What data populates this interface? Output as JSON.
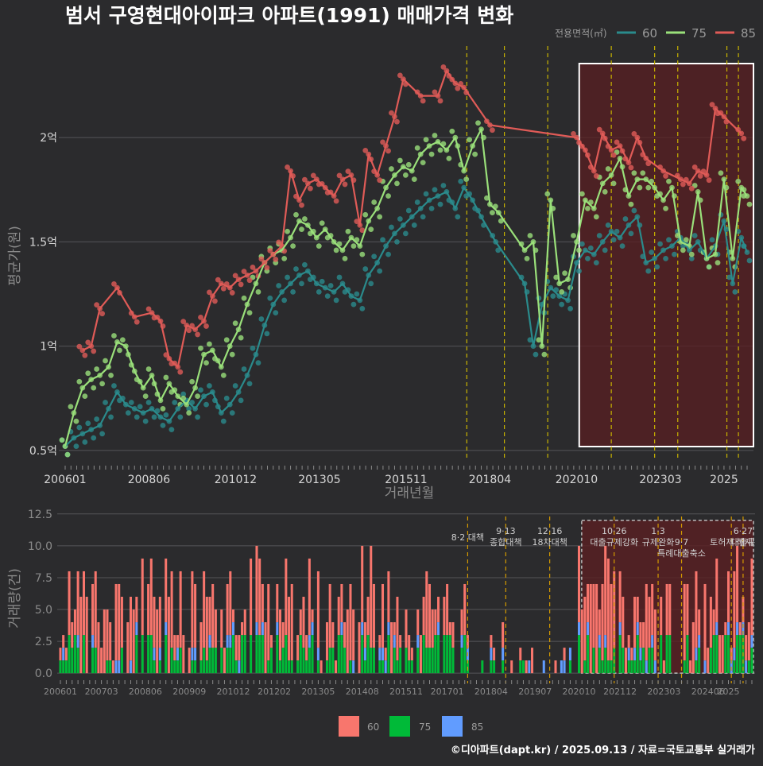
{
  "chart_data": [
    {
      "type": "line",
      "title": "범서 구영현대아이파크 아파트(1991) 매매가격 변화",
      "xlabel": "거래년월",
      "ylabel": "평균가(원)",
      "x_range": [
        "2006-01",
        "2025-09"
      ],
      "ylim": [
        0.45,
        2.45
      ],
      "y_unit": "억",
      "yticks": [
        {
          "value": 0.5,
          "label": "0.5억"
        },
        {
          "value": 1.0,
          "label": "1억"
        },
        {
          "value": 1.5,
          "label": "1.5억"
        },
        {
          "value": 2.0,
          "label": "2억"
        }
      ],
      "xticks": [
        "200601",
        "200806",
        "201012",
        "201305",
        "201511",
        "201804",
        "202010",
        "202303",
        "2025"
      ],
      "legend": {
        "title": "전용면적(㎡)",
        "position": "top-right"
      },
      "grid": true,
      "highlight_range": [
        "2020-12",
        "2025-09"
      ],
      "policy_dates": [
        "2017-08",
        "2018-09",
        "2019-12",
        "2021-10",
        "2023-01",
        "2023-09",
        "2025-02",
        "2025-06"
      ],
      "series": [
        {
          "name": "60",
          "color": "#2a8b8c",
          "points": [
            [
              "2006-01",
              0.52
            ],
            [
              "2006-04",
              0.56
            ],
            [
              "2006-07",
              0.58
            ],
            [
              "2006-10",
              0.6
            ],
            [
              "2007-01",
              0.62
            ],
            [
              "2007-04",
              0.7
            ],
            [
              "2007-07",
              0.78
            ],
            [
              "2007-10",
              0.72
            ],
            [
              "2008-01",
              0.7
            ],
            [
              "2008-04",
              0.68
            ],
            [
              "2008-07",
              0.7
            ],
            [
              "2008-10",
              0.66
            ],
            [
              "2009-01",
              0.64
            ],
            [
              "2009-04",
              0.7
            ],
            [
              "2009-07",
              0.74
            ],
            [
              "2009-10",
              0.7
            ],
            [
              "2010-01",
              0.76
            ],
            [
              "2010-04",
              0.78
            ],
            [
              "2010-07",
              0.68
            ],
            [
              "2010-10",
              0.72
            ],
            [
              "2011-01",
              0.78
            ],
            [
              "2011-04",
              0.86
            ],
            [
              "2011-07",
              0.96
            ],
            [
              "2011-10",
              1.1
            ],
            [
              "2012-01",
              1.2
            ],
            [
              "2012-04",
              1.26
            ],
            [
              "2012-07",
              1.3
            ],
            [
              "2012-10",
              1.34
            ],
            [
              "2013-01",
              1.36
            ],
            [
              "2013-04",
              1.3
            ],
            [
              "2013-07",
              1.28
            ],
            [
              "2013-10",
              1.26
            ],
            [
              "2014-01",
              1.3
            ],
            [
              "2014-04",
              1.24
            ],
            [
              "2014-07",
              1.22
            ],
            [
              "2014-10",
              1.34
            ],
            [
              "2015-01",
              1.4
            ],
            [
              "2015-04",
              1.48
            ],
            [
              "2015-07",
              1.54
            ],
            [
              "2015-10",
              1.58
            ],
            [
              "2016-01",
              1.62
            ],
            [
              "2016-04",
              1.66
            ],
            [
              "2016-07",
              1.7
            ],
            [
              "2016-10",
              1.72
            ],
            [
              "2017-01",
              1.74
            ],
            [
              "2017-04",
              1.66
            ],
            [
              "2017-07",
              1.76
            ],
            [
              "2017-10",
              1.7
            ],
            [
              "2018-01",
              1.62
            ],
            [
              "2018-06",
              1.5
            ],
            [
              "2019-04",
              1.3
            ],
            [
              "2019-07",
              1.0
            ],
            [
              "2019-10",
              1.2
            ],
            [
              "2020-01",
              1.28
            ],
            [
              "2020-04",
              1.24
            ],
            [
              "2020-07",
              1.22
            ],
            [
              "2020-10",
              1.4
            ],
            [
              "2021-01",
              1.46
            ],
            [
              "2021-04",
              1.44
            ],
            [
              "2021-07",
              1.5
            ],
            [
              "2021-10",
              1.55
            ],
            [
              "2022-01",
              1.52
            ],
            [
              "2022-04",
              1.58
            ],
            [
              "2022-07",
              1.62
            ],
            [
              "2022-10",
              1.4
            ],
            [
              "2023-01",
              1.42
            ],
            [
              "2023-04",
              1.46
            ],
            [
              "2023-07",
              1.48
            ],
            [
              "2023-10",
              1.52
            ],
            [
              "2024-01",
              1.46
            ],
            [
              "2024-04",
              1.5
            ],
            [
              "2024-07",
              1.42
            ],
            [
              "2024-10",
              1.48
            ],
            [
              "2025-01",
              1.6
            ],
            [
              "2025-04",
              1.3
            ],
            [
              "2025-07",
              1.52
            ],
            [
              "2025-09",
              1.45
            ]
          ]
        },
        {
          "name": "75",
          "color": "#9ae07a",
          "points": [
            [
              "2006-01",
              0.52
            ],
            [
              "2006-04",
              0.68
            ],
            [
              "2006-07",
              0.8
            ],
            [
              "2006-10",
              0.84
            ],
            [
              "2007-01",
              0.86
            ],
            [
              "2007-04",
              0.9
            ],
            [
              "2007-07",
              1.02
            ],
            [
              "2007-10",
              1.0
            ],
            [
              "2008-01",
              0.88
            ],
            [
              "2008-04",
              0.8
            ],
            [
              "2008-07",
              0.86
            ],
            [
              "2008-10",
              0.74
            ],
            [
              "2009-01",
              0.82
            ],
            [
              "2009-04",
              0.76
            ],
            [
              "2009-07",
              0.72
            ],
            [
              "2009-10",
              0.8
            ],
            [
              "2010-01",
              0.96
            ],
            [
              "2010-04",
              0.98
            ],
            [
              "2010-07",
              0.9
            ],
            [
              "2010-10",
              1.0
            ],
            [
              "2011-01",
              1.08
            ],
            [
              "2011-04",
              1.2
            ],
            [
              "2011-07",
              1.3
            ],
            [
              "2011-10",
              1.4
            ],
            [
              "2012-01",
              1.44
            ],
            [
              "2012-04",
              1.46
            ],
            [
              "2012-07",
              1.52
            ],
            [
              "2012-10",
              1.6
            ],
            [
              "2013-01",
              1.58
            ],
            [
              "2013-04",
              1.52
            ],
            [
              "2013-07",
              1.56
            ],
            [
              "2013-10",
              1.5
            ],
            [
              "2014-01",
              1.46
            ],
            [
              "2014-04",
              1.52
            ],
            [
              "2014-07",
              1.48
            ],
            [
              "2014-10",
              1.6
            ],
            [
              "2015-01",
              1.66
            ],
            [
              "2015-04",
              1.76
            ],
            [
              "2015-07",
              1.82
            ],
            [
              "2015-10",
              1.86
            ],
            [
              "2016-01",
              1.84
            ],
            [
              "2016-04",
              1.92
            ],
            [
              "2016-07",
              1.96
            ],
            [
              "2016-10",
              1.98
            ],
            [
              "2017-01",
              1.94
            ],
            [
              "2017-04",
              2.0
            ],
            [
              "2017-07",
              1.84
            ],
            [
              "2017-10",
              1.96
            ],
            [
              "2018-01",
              2.04
            ],
            [
              "2018-04",
              1.68
            ],
            [
              "2018-07",
              1.64
            ],
            [
              "2019-04",
              1.46
            ],
            [
              "2019-07",
              1.5
            ],
            [
              "2019-10",
              1.0
            ],
            [
              "2020-01",
              1.7
            ],
            [
              "2020-04",
              1.3
            ],
            [
              "2020-07",
              1.32
            ],
            [
              "2020-10",
              1.5
            ],
            [
              "2021-01",
              1.7
            ],
            [
              "2021-04",
              1.66
            ],
            [
              "2021-07",
              1.78
            ],
            [
              "2021-10",
              1.82
            ],
            [
              "2022-01",
              1.9
            ],
            [
              "2022-04",
              1.72
            ],
            [
              "2022-07",
              1.8
            ],
            [
              "2022-10",
              1.8
            ],
            [
              "2023-01",
              1.76
            ],
            [
              "2023-04",
              1.7
            ],
            [
              "2023-07",
              1.76
            ],
            [
              "2023-10",
              1.5
            ],
            [
              "2024-01",
              1.48
            ],
            [
              "2024-04",
              1.74
            ],
            [
              "2024-07",
              1.42
            ],
            [
              "2024-10",
              1.44
            ],
            [
              "2025-01",
              1.8
            ],
            [
              "2025-04",
              1.42
            ],
            [
              "2025-07",
              1.76
            ],
            [
              "2025-09",
              1.72
            ]
          ]
        },
        {
          "name": "85",
          "color": "#e05b57",
          "points": [
            [
              "2006-07",
              0.98
            ],
            [
              "2006-10",
              1.0
            ],
            [
              "2007-01",
              1.18
            ],
            [
              "2007-07",
              1.28
            ],
            [
              "2008-01",
              1.14
            ],
            [
              "2008-07",
              1.16
            ],
            [
              "2008-10",
              1.12
            ],
            [
              "2009-01",
              0.94
            ],
            [
              "2009-04",
              0.9
            ],
            [
              "2009-07",
              1.1
            ],
            [
              "2009-10",
              1.08
            ],
            [
              "2010-01",
              1.12
            ],
            [
              "2010-04",
              1.24
            ],
            [
              "2010-07",
              1.3
            ],
            [
              "2010-10",
              1.28
            ],
            [
              "2011-01",
              1.32
            ],
            [
              "2011-04",
              1.34
            ],
            [
              "2011-07",
              1.36
            ],
            [
              "2011-10",
              1.4
            ],
            [
              "2012-01",
              1.44
            ],
            [
              "2012-04",
              1.48
            ],
            [
              "2012-07",
              1.84
            ],
            [
              "2012-10",
              1.7
            ],
            [
              "2013-01",
              1.78
            ],
            [
              "2013-04",
              1.8
            ],
            [
              "2013-07",
              1.76
            ],
            [
              "2013-10",
              1.72
            ],
            [
              "2014-01",
              1.8
            ],
            [
              "2014-04",
              1.82
            ],
            [
              "2014-07",
              1.58
            ],
            [
              "2014-10",
              1.92
            ],
            [
              "2015-01",
              1.82
            ],
            [
              "2015-04",
              1.96
            ],
            [
              "2015-07",
              2.1
            ],
            [
              "2015-10",
              2.28
            ],
            [
              "2016-04",
              2.2
            ],
            [
              "2016-10",
              2.2
            ],
            [
              "2017-01",
              2.32
            ],
            [
              "2017-04",
              2.26
            ],
            [
              "2017-07",
              2.24
            ],
            [
              "2018-04",
              2.06
            ],
            [
              "2020-10",
              2.0
            ],
            [
              "2021-01",
              1.94
            ],
            [
              "2021-04",
              1.84
            ],
            [
              "2021-07",
              2.02
            ],
            [
              "2021-10",
              1.94
            ],
            [
              "2022-01",
              1.96
            ],
            [
              "2022-04",
              1.88
            ],
            [
              "2022-07",
              2.0
            ],
            [
              "2022-10",
              1.9
            ],
            [
              "2023-04",
              1.84
            ],
            [
              "2023-10",
              1.8
            ],
            [
              "2024-01",
              1.78
            ],
            [
              "2024-04",
              1.84
            ],
            [
              "2024-07",
              1.82
            ],
            [
              "2024-10",
              2.14
            ],
            [
              "2025-01",
              2.1
            ],
            [
              "2025-07",
              2.02
            ]
          ]
        }
      ]
    },
    {
      "type": "bar",
      "stacked": true,
      "xlabel": "",
      "ylabel": "거래량(건)",
      "ylim": [
        -0.8,
        12.8
      ],
      "yticks": [
        {
          "value": 0,
          "label": "0.0"
        },
        {
          "value": 2.5,
          "label": "2.5"
        },
        {
          "value": 5,
          "label": "5.0"
        },
        {
          "value": 7.5,
          "label": "7.5"
        },
        {
          "value": 10,
          "label": "10.0"
        },
        {
          "value": 12.5,
          "label": "12.5"
        }
      ],
      "xticks": [
        "200601",
        "200703",
        "200806",
        "200909",
        "201012",
        "201202",
        "201305",
        "201408",
        "201511",
        "201701",
        "201804",
        "201907",
        "202010",
        "202112",
        "202303",
        "202406",
        "2025"
      ],
      "highlight_range": [
        "2020-12",
        "2025-09"
      ],
      "legend": {
        "position": "bottom"
      },
      "series": [
        {
          "name": "60",
          "color": "#f8766d"
        },
        {
          "name": "75",
          "color": "#00ba38"
        },
        {
          "name": "85",
          "color": "#619cff"
        }
      ],
      "annotations": [
        {
          "date": "2017-08",
          "lines": [
            "8·2 대책"
          ]
        },
        {
          "date": "2018-09",
          "lines": [
            "9·13",
            "종합대책"
          ]
        },
        {
          "date": "2019-12",
          "lines": [
            "12·16",
            "18차대책"
          ]
        },
        {
          "date": "2021-10",
          "lines": [
            "10·26",
            "대출규제강화"
          ]
        },
        {
          "date": "2023-01",
          "lines": [
            "1·3",
            "규제완화"
          ]
        },
        {
          "date": "2023-09",
          "lines": [
            "9·7",
            "특례대출축소"
          ]
        },
        {
          "date": "2025-02",
          "lines": [
            "토허제 해제"
          ]
        },
        {
          "date": "2025-06",
          "lines": [
            "6·27",
            "대출규"
          ]
        }
      ]
    }
  ],
  "caption": "©디아파트(dapt.kr) / 2025.09.13 / 자료=국토교통부 실거래가"
}
